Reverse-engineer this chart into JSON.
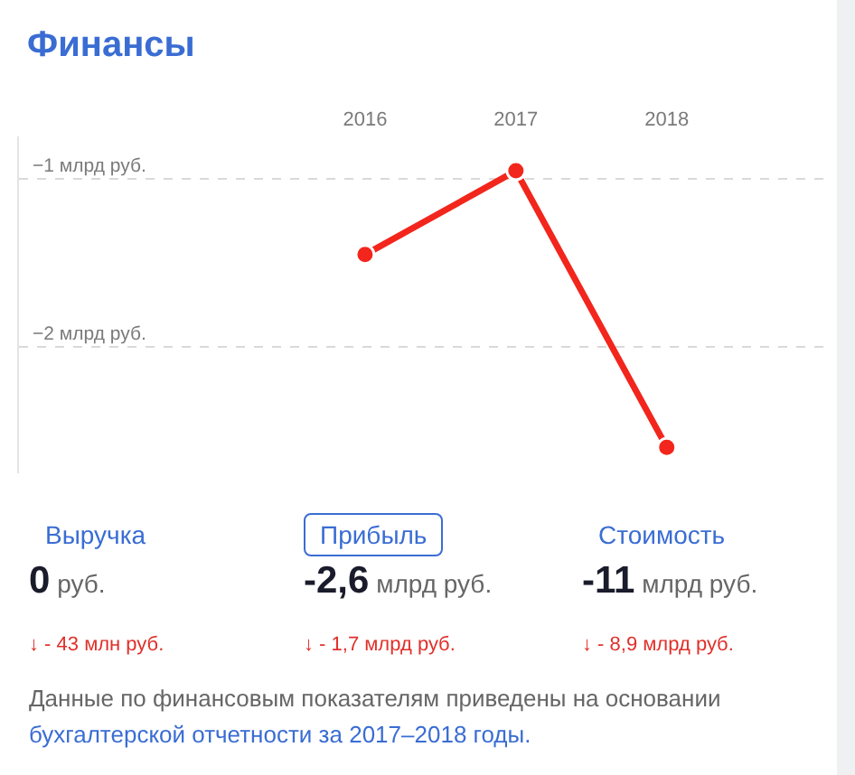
{
  "chart_data": {
    "type": "line",
    "title": "Финансы",
    "x": [
      2016,
      2017,
      2018
    ],
    "xlim": [
      2013.7,
      2019.05
    ],
    "xticks": [
      2016,
      2017,
      2018
    ],
    "series": [
      {
        "color": "#f2261c",
        "values": [
          -1.45,
          -0.95,
          -2.6
        ]
      }
    ],
    "ylim": [
      -2.75,
      -0.75
    ],
    "yticks": [
      {
        "value": -1,
        "label": "−1 млрд руб."
      },
      {
        "value": -2,
        "label": "−2 млрд руб."
      }
    ],
    "grid": "y",
    "marker": "circle",
    "line_style": "solid",
    "annotations": [
      "Выручка",
      "0 руб.",
      "↓ - 43 млн руб.",
      "Прибыль",
      "-2,6 млрд руб.",
      "↓ - 1,7 млрд руб.",
      "Стоимость",
      "-11 млрд руб.",
      "↓ - 8,9 млрд руб.",
      "Данные по финансовым показателям приведены на основании",
      "бухгалтерской отчетности за 2017–2018 годы."
    ]
  }
}
